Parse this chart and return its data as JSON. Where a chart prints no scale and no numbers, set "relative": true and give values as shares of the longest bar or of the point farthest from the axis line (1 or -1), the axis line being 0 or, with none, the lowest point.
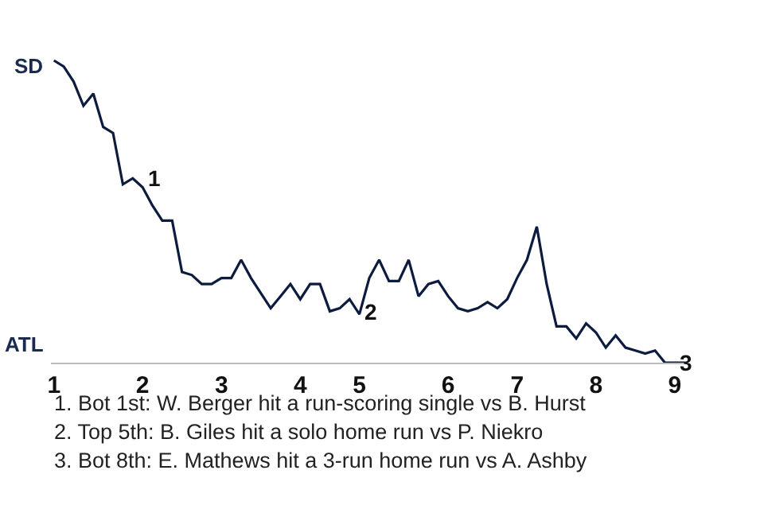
{
  "chart_data": {
    "type": "line",
    "relative": true,
    "categories": [
      "1",
      null,
      null,
      null,
      null,
      null,
      null,
      null,
      null,
      "2",
      null,
      null,
      null,
      null,
      null,
      null,
      null,
      "3",
      null,
      null,
      null,
      null,
      null,
      null,
      null,
      "4",
      null,
      null,
      null,
      null,
      null,
      "5",
      null,
      null,
      null,
      null,
      null,
      null,
      null,
      null,
      "6",
      null,
      null,
      null,
      null,
      null,
      null,
      "7",
      null,
      null,
      null,
      null,
      null,
      null,
      null,
      "8",
      null,
      null,
      null,
      null,
      null,
      null,
      null,
      "9",
      null
    ],
    "series": [
      {
        "color": "#0d1b3e",
        "values": [
          1,
          0.98,
          0.93,
          0.85,
          0.89,
          0.78,
          0.76,
          0.59,
          0.61,
          0.58,
          0.52,
          0.47,
          0.47,
          0.3,
          0.29,
          0.26,
          0.26,
          0.28,
          0.28,
          0.34,
          0.28,
          0.23,
          0.18,
          0.22,
          0.26,
          0.21,
          0.26,
          0.26,
          0.17,
          0.18,
          0.21,
          0.16,
          0.28,
          0.34,
          0.27,
          0.27,
          0.34,
          0.22,
          0.26,
          0.27,
          0.22,
          0.18,
          0.17,
          0.18,
          0.2,
          0.18,
          0.21,
          0.28,
          0.34,
          0.45,
          0.26,
          0.12,
          0.12,
          0.08,
          0.13,
          0.1,
          0.05,
          0.09,
          0.05,
          0.04,
          0.03,
          0.04,
          0,
          0,
          0
        ]
      }
    ],
    "annotations": [
      "SD",
      "ATL",
      {
        "text": "1",
        "x": "2",
        "y": 0.61
      },
      {
        "text": "2",
        "x": "5",
        "y": 0.17
      },
      {
        "text": "3",
        "x": "9",
        "y": 0
      },
      "1. Bot 1st: W. Berger hit a run-scoring single vs B. Hurst",
      "2. Top 5th: B. Giles hit a solo home run vs P. Niekro",
      "3. Bot 8th: E. Mathews hit a 3-run home run vs A. Ashby"
    ]
  }
}
